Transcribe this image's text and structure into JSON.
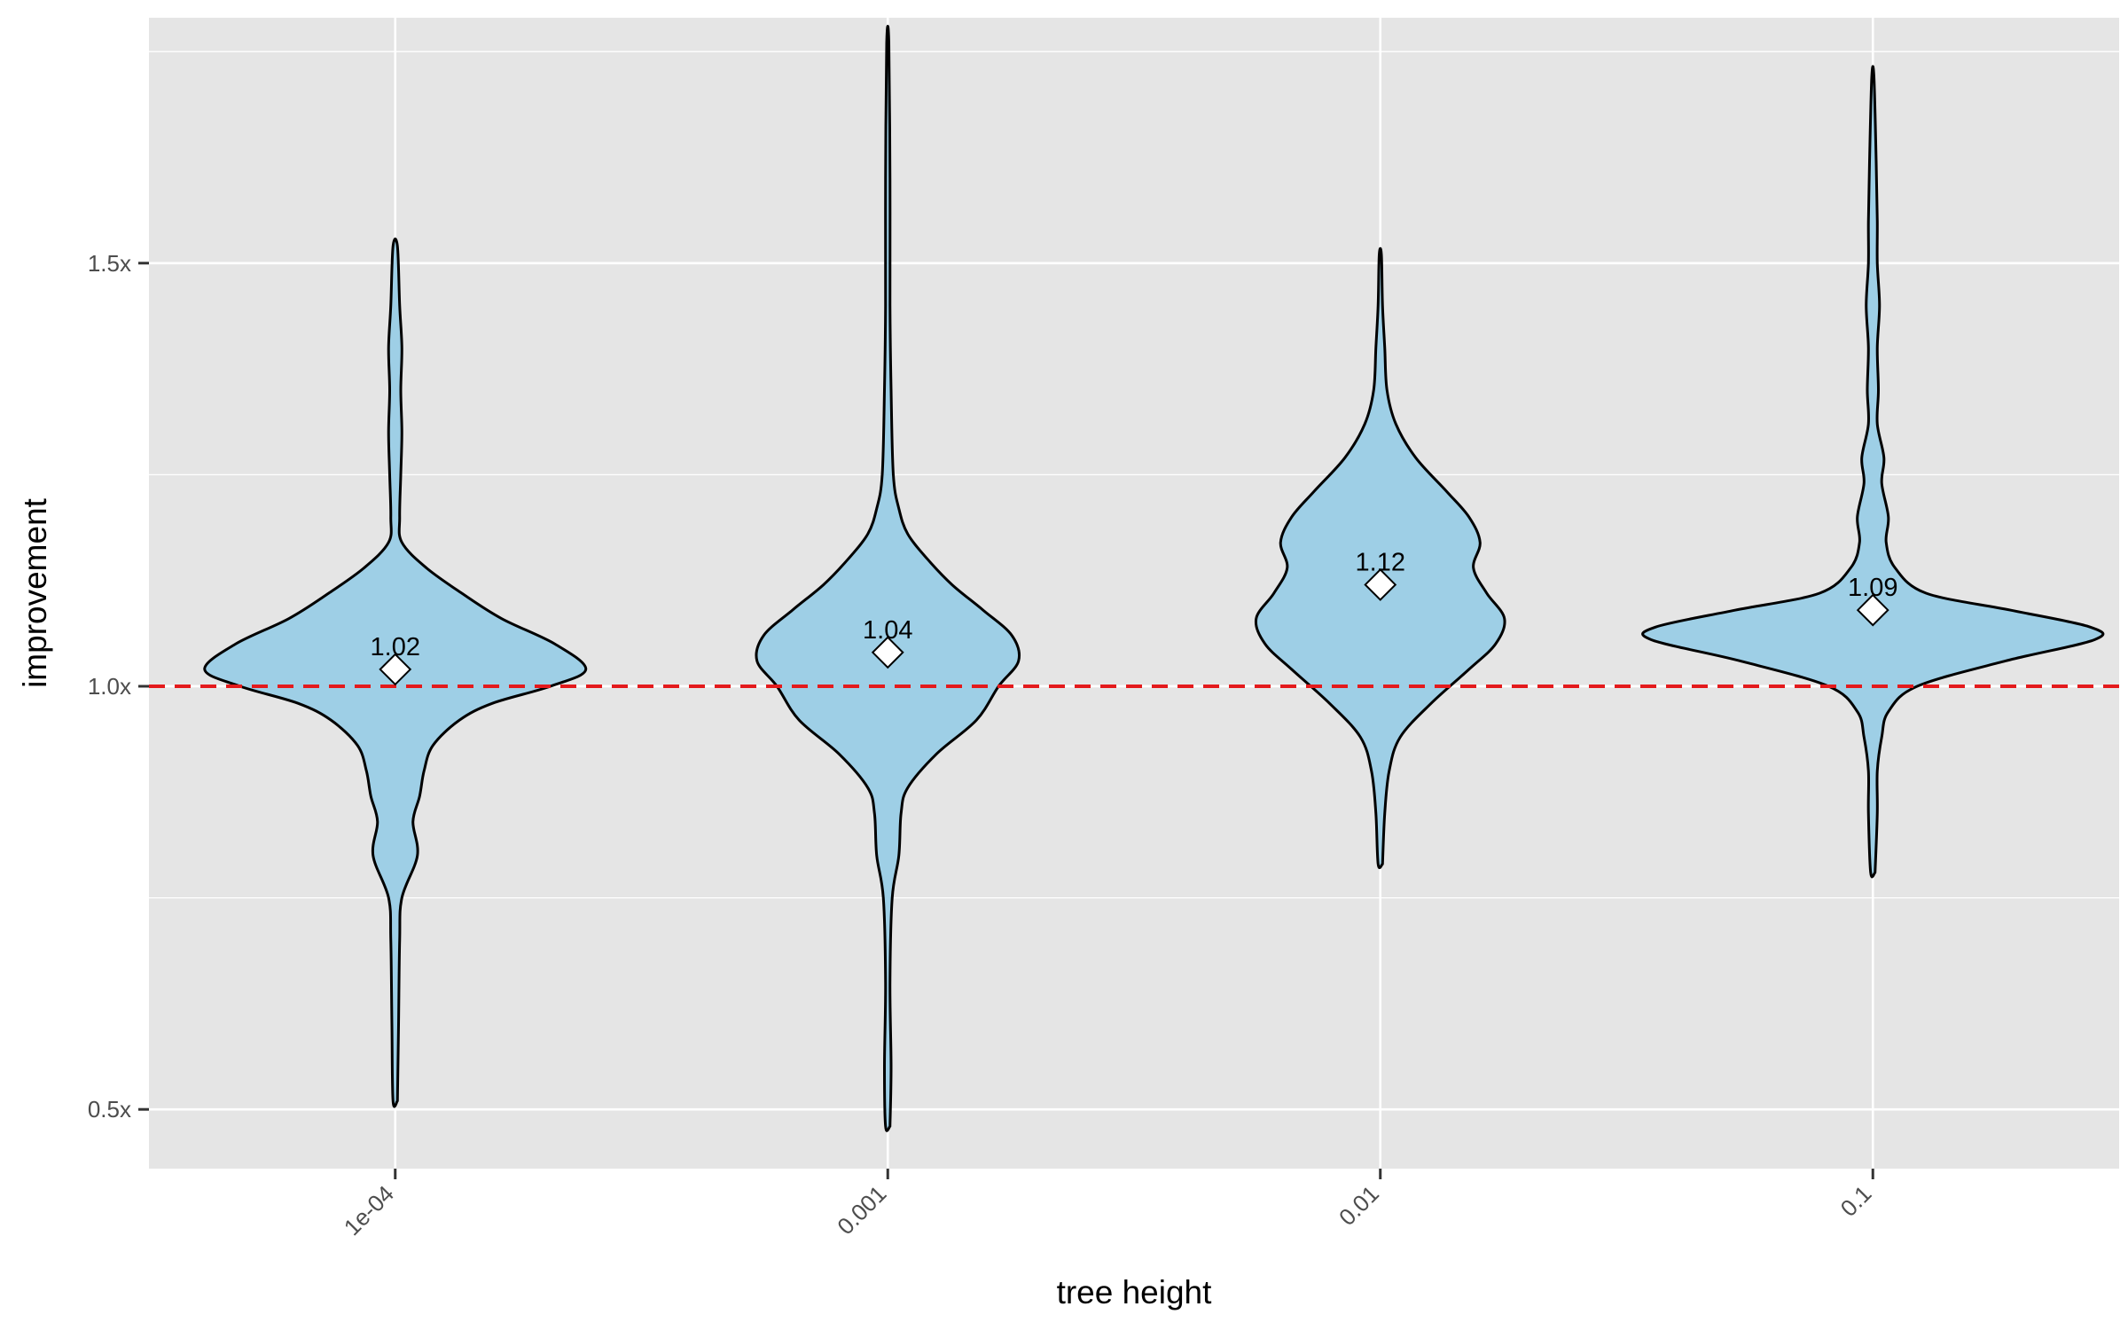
{
  "colors": {
    "panel": "#e5e5e5",
    "grid": "#ffffff",
    "violin_fill": "#9ecfe6",
    "violin_stroke": "#000000",
    "reference_line": "#e41a1c",
    "mean_marker": "#ffffff"
  },
  "chart_data": {
    "type": "violin",
    "title": "",
    "xlabel": "tree height",
    "ylabel": "improvement",
    "ylim": [
      0.43,
      1.79
    ],
    "yticks": [
      {
        "value": 0.5,
        "label": "0.5x"
      },
      {
        "value": 1.0,
        "label": "1.0x"
      },
      {
        "value": 1.5,
        "label": "1.5x"
      }
    ],
    "yminor": [
      0.75,
      1.25,
      1.75
    ],
    "reference_line": 1.0,
    "categories": [
      "1e-04",
      "0.001",
      "0.01",
      "0.1"
    ],
    "series": [
      {
        "name": "1e-04",
        "mean": 1.02,
        "mean_label": "1.02",
        "range": [
          0.51,
          1.52
        ],
        "density": [
          [
            0.51,
            0.01
          ],
          [
            0.6,
            0.015
          ],
          [
            0.7,
            0.02
          ],
          [
            0.75,
            0.03
          ],
          [
            0.8,
            0.1
          ],
          [
            0.84,
            0.08
          ],
          [
            0.87,
            0.11
          ],
          [
            0.9,
            0.13
          ],
          [
            0.93,
            0.17
          ],
          [
            0.96,
            0.29
          ],
          [
            0.98,
            0.44
          ],
          [
            1.0,
            0.7
          ],
          [
            1.02,
            0.86
          ],
          [
            1.05,
            0.72
          ],
          [
            1.08,
            0.48
          ],
          [
            1.11,
            0.3
          ],
          [
            1.14,
            0.14
          ],
          [
            1.17,
            0.03
          ],
          [
            1.2,
            0.02
          ],
          [
            1.25,
            0.025
          ],
          [
            1.3,
            0.03
          ],
          [
            1.35,
            0.025
          ],
          [
            1.4,
            0.03
          ],
          [
            1.45,
            0.02
          ],
          [
            1.52,
            0.01
          ]
        ]
      },
      {
        "name": "0.001",
        "mean": 1.04,
        "mean_label": "1.04",
        "range": [
          0.48,
          1.76
        ],
        "density": [
          [
            0.48,
            0.01
          ],
          [
            0.55,
            0.015
          ],
          [
            0.65,
            0.01
          ],
          [
            0.75,
            0.02
          ],
          [
            0.8,
            0.05
          ],
          [
            0.85,
            0.06
          ],
          [
            0.88,
            0.09
          ],
          [
            0.92,
            0.22
          ],
          [
            0.96,
            0.4
          ],
          [
            1.0,
            0.5
          ],
          [
            1.03,
            0.59
          ],
          [
            1.06,
            0.56
          ],
          [
            1.09,
            0.43
          ],
          [
            1.12,
            0.29
          ],
          [
            1.15,
            0.18
          ],
          [
            1.18,
            0.09
          ],
          [
            1.21,
            0.05
          ],
          [
            1.25,
            0.025
          ],
          [
            1.35,
            0.015
          ],
          [
            1.45,
            0.01
          ],
          [
            1.6,
            0.01
          ],
          [
            1.76,
            0.005
          ]
        ]
      },
      {
        "name": "0.01",
        "mean": 1.12,
        "mean_label": "1.12",
        "range": [
          0.79,
          1.51
        ],
        "density": [
          [
            0.79,
            0.01
          ],
          [
            0.85,
            0.02
          ],
          [
            0.9,
            0.04
          ],
          [
            0.94,
            0.09
          ],
          [
            0.98,
            0.23
          ],
          [
            1.02,
            0.4
          ],
          [
            1.05,
            0.52
          ],
          [
            1.08,
            0.56
          ],
          [
            1.11,
            0.48
          ],
          [
            1.14,
            0.42
          ],
          [
            1.17,
            0.45
          ],
          [
            1.2,
            0.4
          ],
          [
            1.23,
            0.3
          ],
          [
            1.27,
            0.16
          ],
          [
            1.31,
            0.07
          ],
          [
            1.35,
            0.03
          ],
          [
            1.4,
            0.02
          ],
          [
            1.45,
            0.01
          ],
          [
            1.51,
            0.005
          ]
        ]
      },
      {
        "name": "0.1",
        "mean": 1.09,
        "mean_label": "1.09",
        "range": [
          0.78,
          1.72
        ],
        "density": [
          [
            0.78,
            0.01
          ],
          [
            0.85,
            0.02
          ],
          [
            0.9,
            0.02
          ],
          [
            0.94,
            0.04
          ],
          [
            0.97,
            0.07
          ],
          [
            1.0,
            0.2
          ],
          [
            1.03,
            0.6
          ],
          [
            1.055,
            1.0
          ],
          [
            1.07,
            0.98
          ],
          [
            1.09,
            0.62
          ],
          [
            1.11,
            0.24
          ],
          [
            1.14,
            0.1
          ],
          [
            1.17,
            0.06
          ],
          [
            1.2,
            0.07
          ],
          [
            1.24,
            0.04
          ],
          [
            1.27,
            0.05
          ],
          [
            1.31,
            0.02
          ],
          [
            1.35,
            0.025
          ],
          [
            1.4,
            0.02
          ],
          [
            1.45,
            0.03
          ],
          [
            1.5,
            0.02
          ],
          [
            1.55,
            0.02
          ],
          [
            1.62,
            0.015
          ],
          [
            1.72,
            0.005
          ]
        ]
      }
    ]
  }
}
